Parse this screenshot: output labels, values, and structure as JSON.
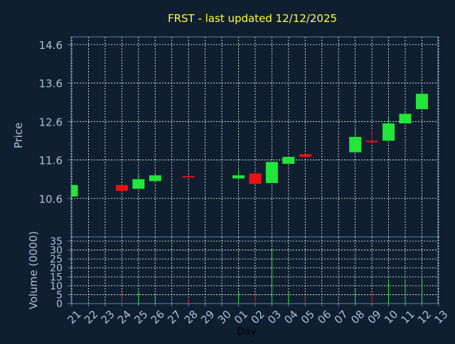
{
  "chart_data": {
    "type": "candlestick",
    "title": "FRST - last updated 12/12/2025",
    "xlabel": "Day",
    "colors": {
      "background": "#0f1f30",
      "plot_border": "#5a7fb5",
      "grid": "#ffffff",
      "title": "#ffff33",
      "axis_text": "#a9c0dd",
      "up": "#22e639",
      "down": "#ee1111"
    },
    "price_panel": {
      "ylabel": "Price",
      "ylim": [
        9.6,
        14.8
      ],
      "yticks": [
        "10.6",
        "11.6",
        "12.6",
        "13.6",
        "14.6"
      ],
      "grid": true
    },
    "volume_panel": {
      "ylabel": "Volume (0000)",
      "ylim": [
        0,
        35
      ],
      "yticks": [
        "0",
        "5",
        "10",
        "15",
        "20",
        "25",
        "30",
        "35"
      ],
      "grid": true
    },
    "days": [
      "21",
      "22",
      "23",
      "24",
      "25",
      "26",
      "27",
      "28",
      "29",
      "30",
      "01",
      "02",
      "03",
      "04",
      "05",
      "06",
      "07",
      "08",
      "09",
      "10",
      "11",
      "12",
      "13"
    ],
    "candles": [
      {
        "day": "21",
        "open": 10.65,
        "close": 10.95,
        "high": 10.95,
        "low": 10.6,
        "volume": 0
      },
      {
        "day": "24",
        "open": 10.95,
        "close": 10.8,
        "high": 10.95,
        "low": 10.8,
        "volume": 6.5
      },
      {
        "day": "25",
        "open": 10.85,
        "close": 11.1,
        "high": 11.25,
        "low": 10.85,
        "volume": 7.5
      },
      {
        "day": "26",
        "open": 11.05,
        "close": 11.2,
        "high": 11.22,
        "low": 11.05,
        "volume": 4.5
      },
      {
        "day": "28",
        "open": 11.18,
        "close": 11.16,
        "high": 11.22,
        "low": 11.15,
        "volume": 2.5
      },
      {
        "day": "01",
        "open": 11.12,
        "close": 11.2,
        "high": 11.35,
        "low": 11.12,
        "volume": 6.5
      },
      {
        "day": "02",
        "open": 11.25,
        "close": 10.98,
        "high": 11.25,
        "low": 10.98,
        "volume": 5.0
      },
      {
        "day": "03",
        "open": 11.0,
        "close": 11.55,
        "high": 11.55,
        "low": 11.0,
        "volume": 30.5
      },
      {
        "day": "04",
        "open": 11.5,
        "close": 11.68,
        "high": 11.68,
        "low": 11.5,
        "volume": 6.5
      },
      {
        "day": "05",
        "open": 11.75,
        "close": 11.68,
        "high": 11.75,
        "low": 11.68,
        "volume": 4.5
      },
      {
        "day": "08",
        "open": 11.8,
        "close": 12.2,
        "high": 12.45,
        "low": 11.8,
        "volume": 8.5
      },
      {
        "day": "09",
        "open": 12.1,
        "close": 12.08,
        "high": 12.38,
        "low": 12.05,
        "volume": 6.5
      },
      {
        "day": "10",
        "open": 12.1,
        "close": 12.55,
        "high": 12.7,
        "low": 12.1,
        "volume": 12.5
      },
      {
        "day": "11",
        "open": 12.55,
        "close": 12.8,
        "high": 12.9,
        "low": 12.55,
        "volume": 12.5
      },
      {
        "day": "12",
        "open": 12.92,
        "close": 13.32,
        "high": 13.42,
        "low": 12.92,
        "volume": 14.0
      }
    ]
  }
}
